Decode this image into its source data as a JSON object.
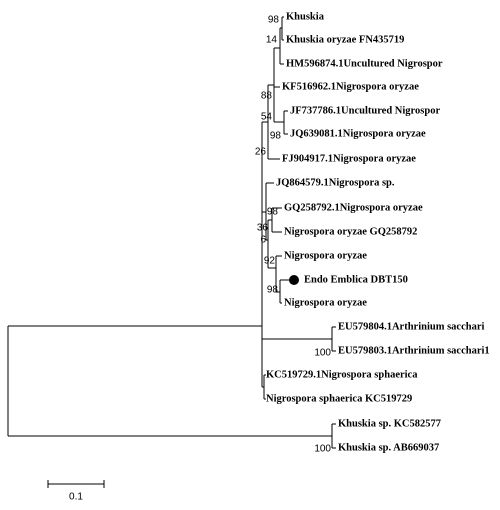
{
  "tree": {
    "leaves": [
      "Khuskia",
      "Khuskia oryzae FN435719",
      "HM596874.1Uncultured Nigrospor",
      "KF516962.1Nigrospora oryzae",
      "JF737786.1Uncultured Nigrospor",
      "JQ639081.1Nigrospora oryzae",
      "FJ904917.1Nigrospora oryzae",
      "JQ864579.1Nigrospora sp.",
      "GQ258792.1Nigrospora oryzae",
      "Nigrospora oryzae GQ258792",
      "Nigrospora oryzae",
      "Endo Emblica DBT150",
      "Nigrospora oryzae",
      "EU579804.1Arthrinium sacchari",
      "EU579803.1Arthrinium sacchari1",
      "KC519729.1Nigrospora sphaerica",
      "Nigrospora sphaerica KC519729",
      "Khuskia sp. KC582577",
      "Khuskia sp. AB669037"
    ],
    "bootstrap": [
      98,
      14,
      88,
      54,
      98,
      26,
      98,
      36,
      6,
      92,
      98,
      100,
      100
    ],
    "scale_label": "0.1"
  }
}
